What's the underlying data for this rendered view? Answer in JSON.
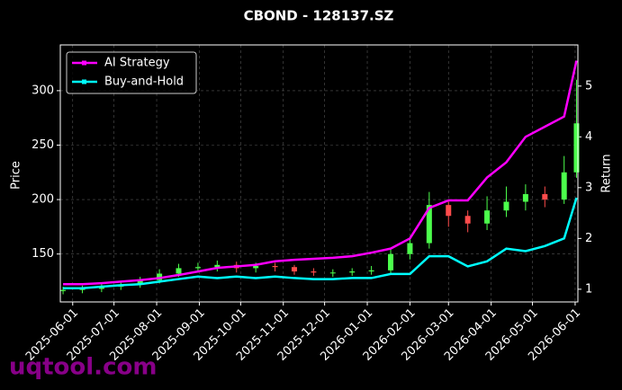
{
  "chart_data": {
    "type": "candlestick-lines",
    "title": "CBOND - 128137.SZ",
    "ylabel": "Price",
    "y2label": "Return",
    "watermark": "uqtool.com",
    "x": [
      "2025-05-25",
      "2025-06-08",
      "2025-06-22",
      "2025-07-06",
      "2025-07-20",
      "2025-08-03",
      "2025-08-17",
      "2025-08-31",
      "2025-09-14",
      "2025-09-28",
      "2025-10-12",
      "2025-10-26",
      "2025-11-09",
      "2025-11-23",
      "2025-12-07",
      "2025-12-21",
      "2026-01-04",
      "2026-01-18",
      "2026-02-01",
      "2026-02-15",
      "2026-03-01",
      "2026-03-15",
      "2026-03-29",
      "2026-04-12",
      "2026-04-26",
      "2026-05-10",
      "2026-05-24",
      "2026-06-02"
    ],
    "xlim": [
      "2025-05-23",
      "2026-06-03"
    ],
    "xticks": [
      "2025-06-01",
      "2025-07-01",
      "2025-08-01",
      "2025-09-01",
      "2025-10-01",
      "2025-11-01",
      "2025-12-01",
      "2026-01-01",
      "2026-02-01",
      "2026-03-01",
      "2026-04-01",
      "2026-05-01",
      "2026-06-01"
    ],
    "ylim": [
      106,
      342
    ],
    "yticks": [
      150,
      200,
      250,
      300
    ],
    "y2lim": [
      0.75,
      5.81
    ],
    "y2ticks": [
      1,
      2,
      3,
      4,
      5
    ],
    "grid": true,
    "legend": "upper left",
    "up_color": "#4cff4c",
    "down_color": "#ff4c4c",
    "open": [
      116,
      117,
      118,
      120,
      122,
      126,
      132,
      137,
      138,
      140,
      137,
      139,
      138,
      134,
      133,
      133,
      134,
      135,
      150,
      160,
      195,
      185,
      178,
      190,
      198,
      205,
      200,
      225
    ],
    "close": [
      117,
      118,
      120,
      122,
      126,
      132,
      137,
      138,
      140,
      137,
      139,
      138,
      134,
      133,
      133,
      134,
      135,
      150,
      160,
      195,
      185,
      178,
      190,
      198,
      205,
      200,
      225,
      270
    ],
    "high": [
      120,
      121,
      123,
      125,
      129,
      136,
      141,
      142,
      144,
      143,
      142,
      142,
      140,
      137,
      136,
      137,
      139,
      155,
      166,
      207,
      198,
      190,
      203,
      212,
      214,
      212,
      240,
      310
    ],
    "low": [
      113,
      114,
      115,
      117,
      119,
      123,
      129,
      133,
      134,
      133,
      133,
      134,
      131,
      130,
      129,
      130,
      131,
      132,
      145,
      155,
      175,
      170,
      172,
      184,
      190,
      193,
      196,
      220
    ],
    "series": [
      {
        "name": "AI Strategy",
        "color": "#ff00ff",
        "axis": "y2",
        "values": [
          1.1,
          1.1,
          1.12,
          1.15,
          1.18,
          1.22,
          1.28,
          1.35,
          1.42,
          1.45,
          1.48,
          1.55,
          1.58,
          1.6,
          1.62,
          1.65,
          1.72,
          1.8,
          2.0,
          2.6,
          2.75,
          2.75,
          3.2,
          3.5,
          4.0,
          4.2,
          4.4,
          5.5
        ]
      },
      {
        "name": "Buy-and-Hold",
        "color": "#00ffff",
        "axis": "y2",
        "values": [
          1.02,
          1.02,
          1.05,
          1.08,
          1.1,
          1.15,
          1.2,
          1.25,
          1.22,
          1.25,
          1.22,
          1.25,
          1.22,
          1.2,
          1.2,
          1.22,
          1.22,
          1.3,
          1.3,
          1.65,
          1.65,
          1.45,
          1.55,
          1.8,
          1.75,
          1.85,
          2.0,
          2.8
        ]
      }
    ]
  }
}
